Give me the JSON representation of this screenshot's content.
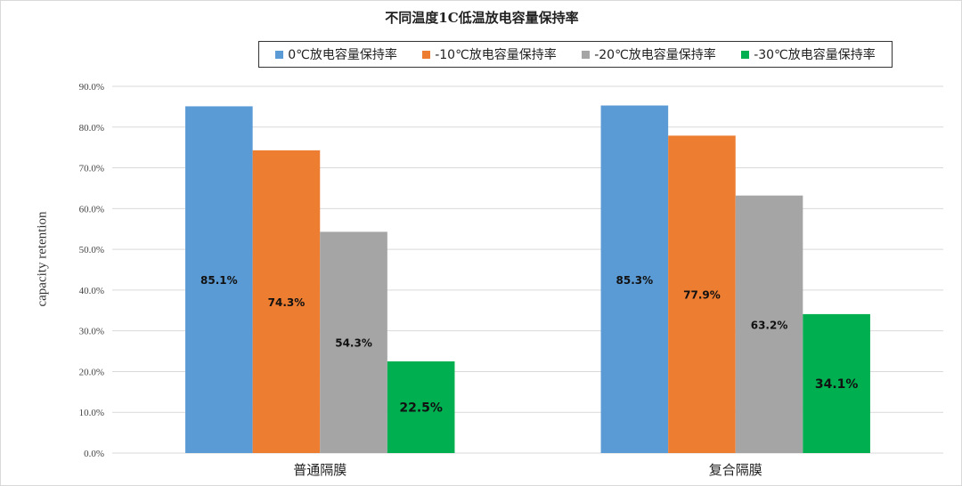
{
  "chart_data": {
    "type": "bar",
    "title": "不同温度1C低温放电容量保持率",
    "xlabel": "",
    "ylabel": "capacity retention",
    "categories": [
      "普通隔膜",
      "复合隔膜"
    ],
    "series": [
      {
        "name": "0℃放电容量保持率",
        "color": "#5b9bd5",
        "values": [
          85.1,
          85.3
        ],
        "labels": [
          "85.1%",
          "85.3%"
        ]
      },
      {
        "name": "-10℃放电容量保持率",
        "color": "#ed7d31",
        "values": [
          74.3,
          77.9
        ],
        "labels": [
          "74.3%",
          "77.9%"
        ]
      },
      {
        "name": "-20℃放电容量保持率",
        "color": "#a5a5a5",
        "values": [
          54.3,
          63.2
        ],
        "labels": [
          "54.3%",
          "63.2%"
        ]
      },
      {
        "name": "-30℃放电容量保持率",
        "color": "#00b050",
        "values": [
          22.5,
          34.1
        ],
        "labels": [
          "22.5%",
          "34.1%"
        ]
      }
    ],
    "ylim": [
      0,
      90
    ],
    "yticks": [
      "0.0%",
      "10.0%",
      "20.0%",
      "30.0%",
      "40.0%",
      "50.0%",
      "60.0%",
      "70.0%",
      "80.0%",
      "90.0%"
    ],
    "grid": true,
    "legend_position": "top"
  }
}
